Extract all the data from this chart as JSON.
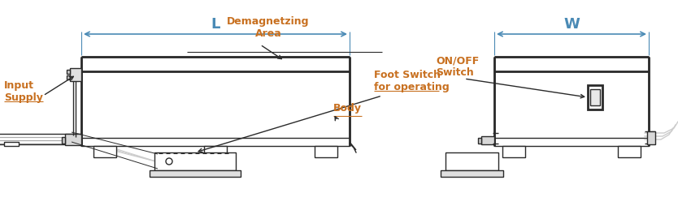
{
  "bg_color": "#ffffff",
  "line_color": "#2a2a2a",
  "text_color": "#c87020",
  "dim_color": "#4a8ab5",
  "fig_width": 8.34,
  "fig_height": 2.75,
  "dpi": 100,
  "labels": {
    "demagnetizing_area": "Demagnetzing\nArea",
    "L": "L",
    "W": "W",
    "input_supply": "Input\nSupply",
    "on_off_switch": "ON/OFF\nSwitch",
    "foot_switch": "Foot Switch\nfor operating",
    "body": "Body"
  }
}
